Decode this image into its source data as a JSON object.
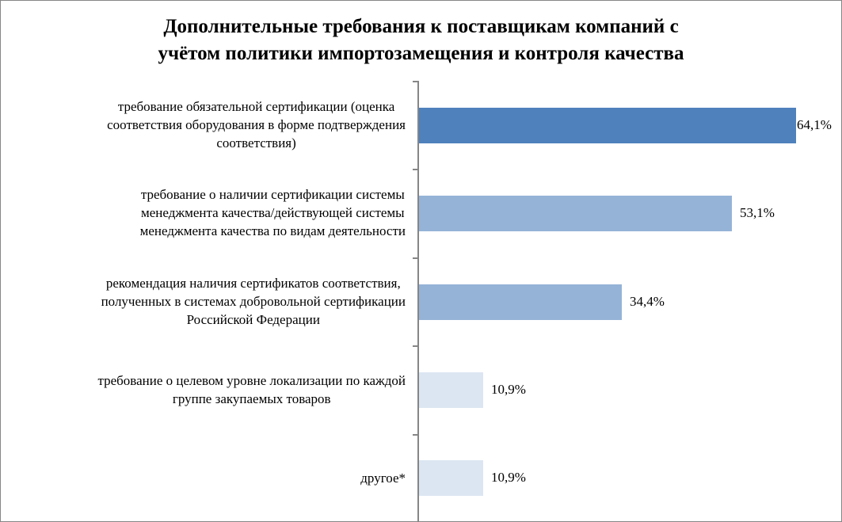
{
  "chart_data": {
    "type": "bar",
    "orientation": "horizontal",
    "title": "Дополнительные требования к поставщикам компаний с\nучётом политики импортозамещения и контроля качества",
    "categories": [
      "требование обязательной сертификации (оценка\nсоответствия оборудования в форме подтверждения\nсоответствия)",
      "требование о наличии  сертификации системы\nменеджмента качества/действующей системы\nменеджмента качества по видам деятельности",
      "рекомендация наличия  сертификатов соответствия,\nполученных в  системах добровольной сертификации\nРоссийской Федерации",
      "требование о целевом уровне локализации по каждой\nгруппе закупаемых товаров",
      "другое*"
    ],
    "values": [
      64.1,
      53.1,
      34.4,
      10.9,
      10.9
    ],
    "value_labels": [
      "64,1%",
      "53,1%",
      "34,4%",
      "10,9%",
      "10,9%"
    ],
    "bar_colors": [
      "#4f81bd",
      "#95b3d7",
      "#95b3d7",
      "#dce6f2",
      "#dce6f2"
    ],
    "xlabel": "",
    "ylabel": "",
    "xlim": [
      0,
      70
    ],
    "grid": false,
    "legend": "none"
  }
}
